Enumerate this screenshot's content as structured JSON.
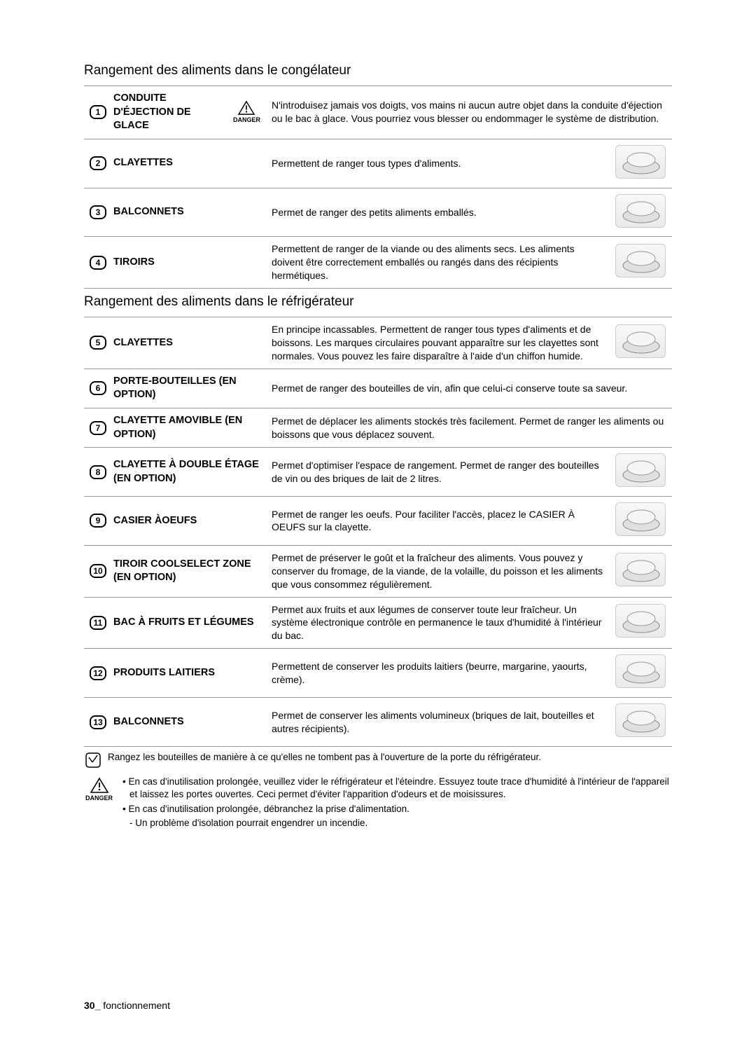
{
  "sections": {
    "freezer_title": "Rangement des aliments dans le congélateur",
    "fridge_title": "Rangement des aliments dans le réfrigérateur"
  },
  "freezer_rows": [
    {
      "num": "1",
      "label": "CONDUITE D'ÉJECTION DE GLACE",
      "danger": true,
      "desc": "N'introduisez jamais vos doigts, vos mains ni aucun autre objet dans la conduite d'éjection ou le bac à glace. Vous pourriez vous blesser ou endommager le système de distribution.",
      "has_icon": false
    },
    {
      "num": "2",
      "label": "CLAYETTES",
      "danger": false,
      "desc": "Permettent de ranger tous types d'aliments.",
      "has_icon": true
    },
    {
      "num": "3",
      "label": "BALCONNETS",
      "danger": false,
      "desc": "Permet de ranger des petits aliments emballés.",
      "has_icon": true
    },
    {
      "num": "4",
      "label": "TIROIRS",
      "danger": false,
      "desc": "Permettent de ranger de la viande ou des aliments secs. Les aliments doivent être correctement emballés ou rangés dans des récipients hermétiques.",
      "has_icon": true
    }
  ],
  "fridge_rows": [
    {
      "num": "5",
      "label": "CLAYETTES",
      "desc": "En principe incassables. Permettent de ranger tous types d'aliments et de boissons. Les marques circulaires pouvant apparaître sur les clayettes sont normales. Vous pouvez les faire disparaître à l'aide d'un chiffon humide.",
      "has_icon": true
    },
    {
      "num": "6",
      "label": "PORTE-BOUTEILLES (EN OPTION)",
      "desc": "Permet de ranger des bouteilles de vin, afin que celui-ci conserve toute sa saveur.",
      "has_icon": false
    },
    {
      "num": "7",
      "label": "CLAYETTE AMOVIBLE (EN OPTION)",
      "desc": "Permet de déplacer les aliments stockés très facilement. Permet de ranger les aliments ou boissons que vous déplacez souvent.",
      "has_icon": false
    },
    {
      "num": "8",
      "label": "CLAYETTE À DOUBLE ÉTAGE (EN OPTION)",
      "desc": "Permet d'optimiser l'espace de rangement. Permet de ranger des bouteilles de vin ou des briques de lait de 2 litres.",
      "has_icon": true
    },
    {
      "num": "9",
      "label": "CASIER ÀOEUFS",
      "desc": "Permet de ranger les oeufs. Pour faciliter l'accès, placez le CASIER À OEUFS sur la clayette.",
      "has_icon": true
    },
    {
      "num": "10",
      "label": "TIROIR COOLSELECT ZONE (EN OPTION)",
      "desc": "Permet de préserver le goût et la fraîcheur des aliments. Vous pouvez y conserver du fromage, de la viande, de la volaille, du poisson et les aliments que vous consommez régulièrement.",
      "has_icon": true
    },
    {
      "num": "11",
      "label": "BAC À FRUITS ET LÉGUMES",
      "desc": "Permet aux fruits et aux légumes de conserver toute leur fraîcheur. Un système électronique contrôle en permanence le taux d'humidité à l'intérieur du bac.",
      "has_icon": true
    },
    {
      "num": "12",
      "label": "PRODUITS LAITIERS",
      "desc": "Permettent de conserver les produits laitiers (beurre, margarine, yaourts, crème).",
      "has_icon": true
    },
    {
      "num": "13",
      "label": "BALCONNETS",
      "desc": "Permet de conserver les aliments volumineux (briques de lait, bouteilles et autres récipients).",
      "has_icon": true
    }
  ],
  "danger_label": "DANGER",
  "memo_note": "Rangez les bouteilles de manière à ce qu'elles ne tombent pas à l'ouverture de la porte du réfrigérateur.",
  "danger_notes": [
    "En cas d'inutilisation prolongée, veuillez vider le réfrigérateur et l'éteindre. Essuyez toute trace d'humidité à l'intérieur de l'appareil et laissez les portes ouvertes. Ceci permet d'éviter l'apparition d'odeurs et de moisissures.",
    "En cas d'inutilisation prolongée, débranchez la prise d'alimentation."
  ],
  "danger_sub_note": "Un problème d'isolation pourrait engendrer un incendie.",
  "footer_page": "30_",
  "footer_label": "fonctionnement",
  "colors": {
    "border": "#999999",
    "text": "#000000",
    "background": "#ffffff"
  }
}
